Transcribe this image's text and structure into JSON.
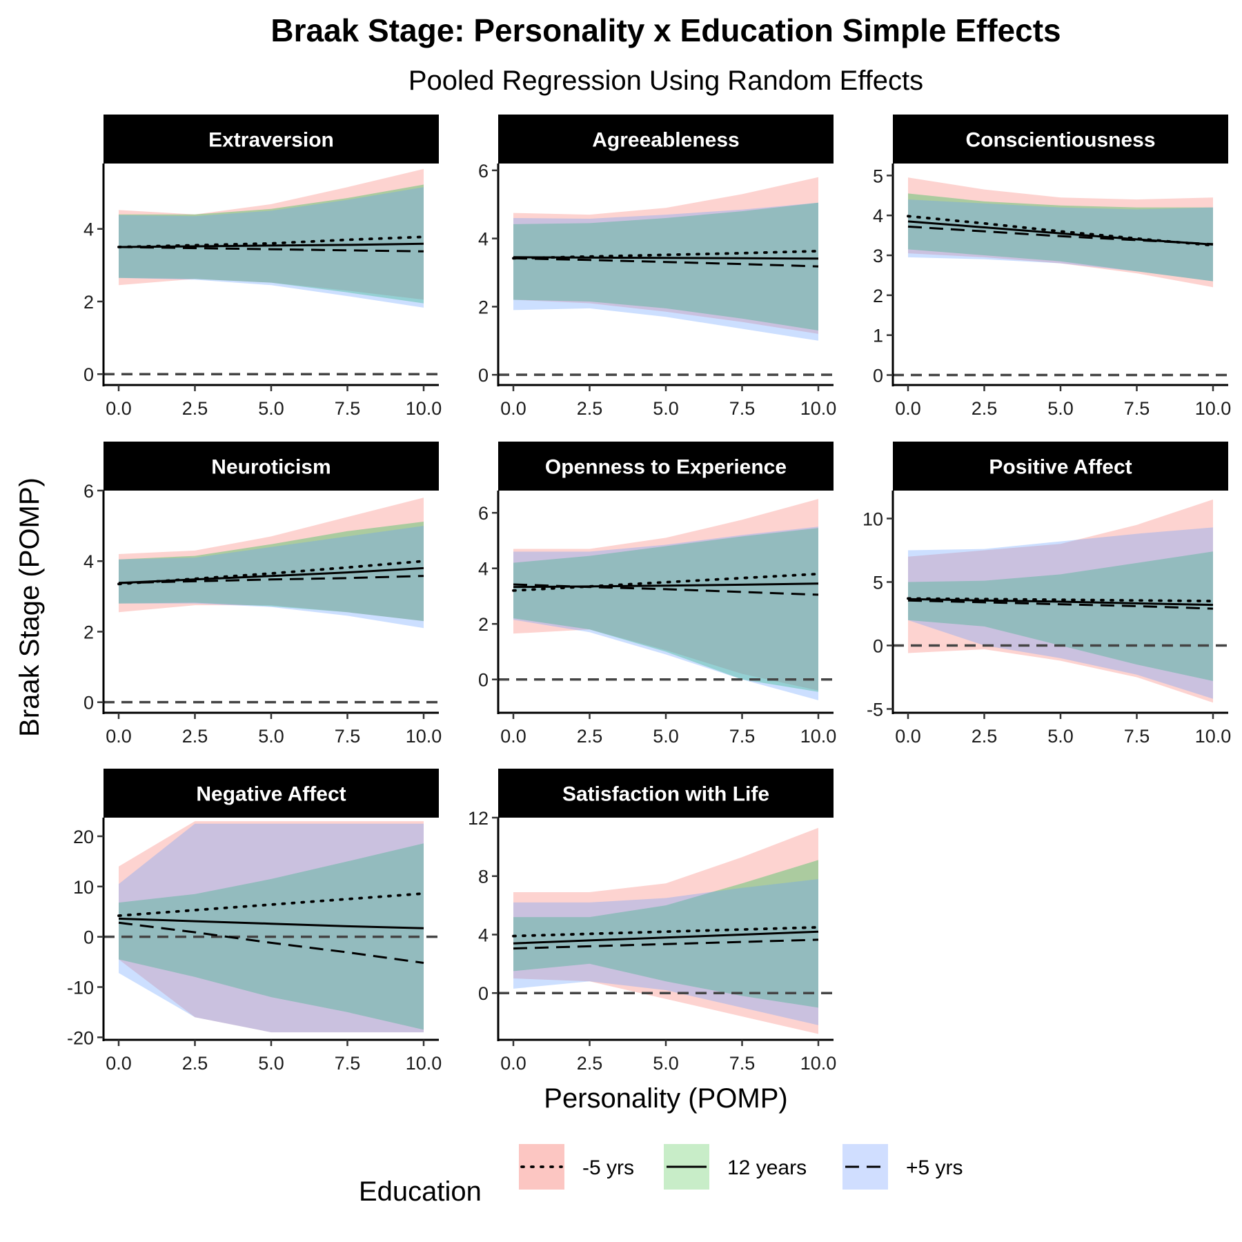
{
  "title": "Braak Stage: Personality x Education Simple Effects",
  "subtitle": "Pooled Regression Using Random Effects",
  "xlabel": "Personality (POMP)",
  "ylabel": "Braak Stage (POMP)",
  "legend": {
    "title": "Education",
    "position": "bottom",
    "entries": [
      {
        "key": "minus5",
        "label": "-5 yrs",
        "fill": "#f8766d",
        "linetype": "dotted"
      },
      {
        "key": "twelve",
        "label": "12 years",
        "fill": "#7cd37c",
        "linetype": "solid"
      },
      {
        "key": "plus5",
        "label": "+5 yrs",
        "fill": "#8fb1ff",
        "linetype": "dashed"
      }
    ]
  },
  "colors": {
    "minus5": "#f8766d",
    "twelve": "#00ba38",
    "plus5": "#619cff",
    "overlap": "#a6b9bd",
    "strip_bg": "#000000",
    "reference_line": "#444444"
  },
  "chart_data": [
    {
      "type": "line",
      "panel": "Extraversion",
      "x": [
        0,
        2.5,
        5,
        7.5,
        10
      ],
      "x_ticks": [
        "0.0",
        "2.5",
        "5.0",
        "7.5",
        "10.0"
      ],
      "ylim": [
        -0.3,
        5.8
      ],
      "y_ticks": [
        0,
        2,
        4
      ],
      "reference_y": 0,
      "series": [
        {
          "name": "-5 yrs",
          "values": [
            3.5,
            3.55,
            3.6,
            3.7,
            3.78
          ],
          "lower": [
            2.45,
            2.62,
            2.52,
            2.3,
            2.05
          ],
          "upper": [
            4.52,
            4.4,
            4.68,
            5.15,
            5.65
          ]
        },
        {
          "name": "12 years",
          "values": [
            3.5,
            3.52,
            3.54,
            3.56,
            3.59
          ],
          "lower": [
            2.65,
            2.62,
            2.52,
            2.25,
            1.95
          ],
          "upper": [
            4.4,
            4.4,
            4.55,
            4.85,
            5.22
          ]
        },
        {
          "name": "+5 yrs",
          "values": [
            3.5,
            3.47,
            3.44,
            3.41,
            3.38
          ],
          "lower": [
            2.65,
            2.6,
            2.45,
            2.15,
            1.83
          ],
          "upper": [
            4.38,
            4.35,
            4.5,
            4.8,
            5.15
          ]
        }
      ]
    },
    {
      "type": "line",
      "panel": "Agreeableness",
      "x": [
        0,
        2.5,
        5,
        7.5,
        10
      ],
      "x_ticks": [
        "0.0",
        "2.5",
        "5.0",
        "7.5",
        "10.0"
      ],
      "ylim": [
        -0.3,
        6.2
      ],
      "y_ticks": [
        0,
        2,
        4,
        6
      ],
      "reference_y": 0,
      "series": [
        {
          "name": "-5 yrs",
          "values": [
            3.42,
            3.47,
            3.52,
            3.57,
            3.63
          ],
          "lower": [
            2.2,
            2.1,
            1.85,
            1.55,
            1.2
          ],
          "upper": [
            4.75,
            4.7,
            4.9,
            5.3,
            5.8
          ]
        },
        {
          "name": "12 years",
          "values": [
            3.45,
            3.44,
            3.43,
            3.42,
            3.41
          ],
          "lower": [
            2.2,
            2.15,
            1.95,
            1.65,
            1.3
          ],
          "upper": [
            4.42,
            4.45,
            4.6,
            4.8,
            5.05
          ]
        },
        {
          "name": "+5 yrs",
          "values": [
            3.42,
            3.37,
            3.31,
            3.25,
            3.18
          ],
          "lower": [
            1.9,
            1.95,
            1.7,
            1.35,
            1.0
          ],
          "upper": [
            4.6,
            4.58,
            4.7,
            4.85,
            5.05
          ]
        }
      ]
    },
    {
      "type": "line",
      "panel": "Conscientiousness",
      "x": [
        0,
        2.5,
        5,
        7.5,
        10
      ],
      "x_ticks": [
        "0.0",
        "2.5",
        "5.0",
        "7.5",
        "10.0"
      ],
      "ylim": [
        -0.25,
        5.3
      ],
      "y_ticks": [
        0,
        1,
        2,
        3,
        4,
        5
      ],
      "reference_y": 0,
      "series": [
        {
          "name": "-5 yrs",
          "values": [
            3.98,
            3.8,
            3.6,
            3.42,
            3.25
          ],
          "lower": [
            3.05,
            2.95,
            2.8,
            2.55,
            2.2
          ],
          "upper": [
            4.95,
            4.65,
            4.45,
            4.4,
            4.45
          ]
        },
        {
          "name": "12 years",
          "values": [
            3.85,
            3.7,
            3.55,
            3.4,
            3.27
          ],
          "lower": [
            3.15,
            3.0,
            2.85,
            2.6,
            2.35
          ],
          "upper": [
            4.55,
            4.35,
            4.25,
            4.2,
            4.2
          ]
        },
        {
          "name": "+5 yrs",
          "values": [
            3.72,
            3.6,
            3.48,
            3.38,
            3.28
          ],
          "lower": [
            2.95,
            2.9,
            2.8,
            2.6,
            2.35
          ],
          "upper": [
            4.4,
            4.3,
            4.2,
            4.15,
            4.2
          ]
        }
      ]
    },
    {
      "type": "line",
      "panel": "Neuroticism",
      "x": [
        0,
        2.5,
        5,
        7.5,
        10
      ],
      "x_ticks": [
        "0.0",
        "2.5",
        "5.0",
        "7.5",
        "10.0"
      ],
      "ylim": [
        -0.3,
        6.0
      ],
      "y_ticks": [
        0,
        2,
        4,
        6
      ],
      "reference_y": 0,
      "series": [
        {
          "name": "-5 yrs",
          "values": [
            3.35,
            3.5,
            3.65,
            3.82,
            4.0
          ],
          "lower": [
            2.55,
            2.75,
            2.75,
            2.55,
            2.3
          ],
          "upper": [
            4.2,
            4.3,
            4.7,
            5.25,
            5.8
          ]
        },
        {
          "name": "12 years",
          "values": [
            3.38,
            3.48,
            3.58,
            3.68,
            3.8
          ],
          "lower": [
            2.8,
            2.82,
            2.72,
            2.55,
            2.3
          ],
          "upper": [
            4.05,
            4.15,
            4.48,
            4.85,
            5.12
          ]
        },
        {
          "name": "+5 yrs",
          "values": [
            3.38,
            3.43,
            3.48,
            3.52,
            3.58
          ],
          "lower": [
            2.8,
            2.8,
            2.7,
            2.45,
            2.1
          ],
          "upper": [
            4.05,
            4.1,
            4.4,
            4.7,
            5.0
          ]
        }
      ]
    },
    {
      "type": "line",
      "panel": "Openness to Experience",
      "x": [
        0,
        2.5,
        5,
        7.5,
        10
      ],
      "x_ticks": [
        "0.0",
        "2.5",
        "5.0",
        "7.5",
        "10.0"
      ],
      "ylim": [
        -1.2,
        6.8
      ],
      "y_ticks": [
        0,
        2,
        4,
        6
      ],
      "reference_y": 0,
      "series": [
        {
          "name": "-5 yrs",
          "values": [
            3.2,
            3.35,
            3.5,
            3.65,
            3.8
          ],
          "lower": [
            1.65,
            1.8,
            1.05,
            0.2,
            -0.4
          ],
          "upper": [
            4.7,
            4.7,
            5.1,
            5.75,
            6.5
          ]
        },
        {
          "name": "12 years",
          "values": [
            3.33,
            3.35,
            3.38,
            3.41,
            3.45
          ],
          "lower": [
            2.2,
            1.8,
            1.0,
            0.0,
            -0.45
          ],
          "upper": [
            4.2,
            4.45,
            4.8,
            5.15,
            5.45
          ]
        },
        {
          "name": "+5 yrs",
          "values": [
            3.42,
            3.33,
            3.25,
            3.15,
            3.05
          ],
          "lower": [
            2.15,
            1.7,
            0.9,
            0.0,
            -0.75
          ],
          "upper": [
            4.6,
            4.6,
            4.85,
            5.2,
            5.5
          ]
        }
      ]
    },
    {
      "type": "line",
      "panel": "Positive Affect",
      "x": [
        0,
        2.5,
        5,
        7.5,
        10
      ],
      "x_ticks": [
        "0.0",
        "2.5",
        "5.0",
        "7.5",
        "10.0"
      ],
      "ylim": [
        -5.3,
        12.2
      ],
      "y_ticks": [
        -5,
        0,
        5,
        10
      ],
      "reference_y": 0,
      "series": [
        {
          "name": "-5 yrs",
          "values": [
            3.7,
            3.65,
            3.6,
            3.55,
            3.5
          ],
          "lower": [
            -0.6,
            -0.3,
            -1.2,
            -2.5,
            -4.5
          ],
          "upper": [
            7.0,
            7.5,
            8.0,
            9.5,
            11.5
          ]
        },
        {
          "name": "12 years",
          "values": [
            3.65,
            3.55,
            3.45,
            3.32,
            3.2
          ],
          "lower": [
            2.0,
            1.5,
            0.0,
            -1.5,
            -2.8
          ],
          "upper": [
            5.0,
            5.1,
            5.6,
            6.5,
            7.4
          ]
        },
        {
          "name": "+5 yrs",
          "values": [
            3.55,
            3.4,
            3.25,
            3.1,
            2.9
          ],
          "lower": [
            2.0,
            0.0,
            -1.0,
            -2.3,
            -4.2
          ],
          "upper": [
            7.5,
            7.6,
            8.2,
            8.8,
            9.3
          ]
        }
      ]
    },
    {
      "type": "line",
      "panel": "Negative Affect",
      "x": [
        0,
        2.5,
        5,
        7.5,
        10
      ],
      "x_ticks": [
        "0.0",
        "2.5",
        "5.0",
        "7.5",
        "10.0"
      ],
      "ylim": [
        -20.5,
        23.7
      ],
      "y_ticks": [
        -20,
        -10,
        0,
        10,
        20
      ],
      "reference_y": 0,
      "series": [
        {
          "name": "-5 yrs",
          "values": [
            4.2,
            5.3,
            6.4,
            7.5,
            8.6
          ],
          "lower": [
            -4.5,
            -16,
            -19,
            -19,
            -19
          ],
          "upper": [
            14,
            23,
            23,
            23,
            23
          ]
        },
        {
          "name": "12 years",
          "values": [
            3.6,
            3.1,
            2.6,
            2.1,
            1.7
          ],
          "lower": [
            -4.5,
            -8,
            -12,
            -15,
            -18.5
          ],
          "upper": [
            6.8,
            8.5,
            11.5,
            15,
            18.6
          ]
        },
        {
          "name": "+5 yrs",
          "values": [
            2.8,
            0.9,
            -1.2,
            -3.1,
            -5.2
          ],
          "lower": [
            -7.2,
            -16,
            -19,
            -19,
            -19
          ],
          "upper": [
            10.5,
            22.5,
            22.5,
            22.5,
            22.5
          ]
        }
      ]
    },
    {
      "type": "line",
      "panel": "Satisfaction with Life",
      "x": [
        0,
        2.5,
        5,
        7.5,
        10
      ],
      "x_ticks": [
        "0.0",
        "2.5",
        "5.0",
        "7.5",
        "10.0"
      ],
      "ylim": [
        -3.2,
        12.0
      ],
      "y_ticks": [
        0,
        4,
        8,
        12
      ],
      "reference_y": 0,
      "series": [
        {
          "name": "-5 yrs",
          "values": [
            3.9,
            4.05,
            4.2,
            4.35,
            4.5
          ],
          "lower": [
            1.0,
            0.8,
            -0.4,
            -1.6,
            -2.8
          ],
          "upper": [
            6.9,
            6.9,
            7.5,
            9.3,
            11.3
          ]
        },
        {
          "name": "12 years",
          "values": [
            3.4,
            3.6,
            3.8,
            4.0,
            4.2
          ],
          "lower": [
            1.5,
            2.0,
            0.8,
            -0.2,
            -1.0
          ],
          "upper": [
            5.2,
            5.2,
            6.0,
            7.5,
            9.1
          ]
        },
        {
          "name": "+5 yrs",
          "values": [
            3.05,
            3.2,
            3.35,
            3.5,
            3.65
          ],
          "lower": [
            0.3,
            0.8,
            0.2,
            -1.0,
            -2.2
          ],
          "upper": [
            6.2,
            6.2,
            6.5,
            7.2,
            7.8
          ]
        }
      ]
    }
  ]
}
